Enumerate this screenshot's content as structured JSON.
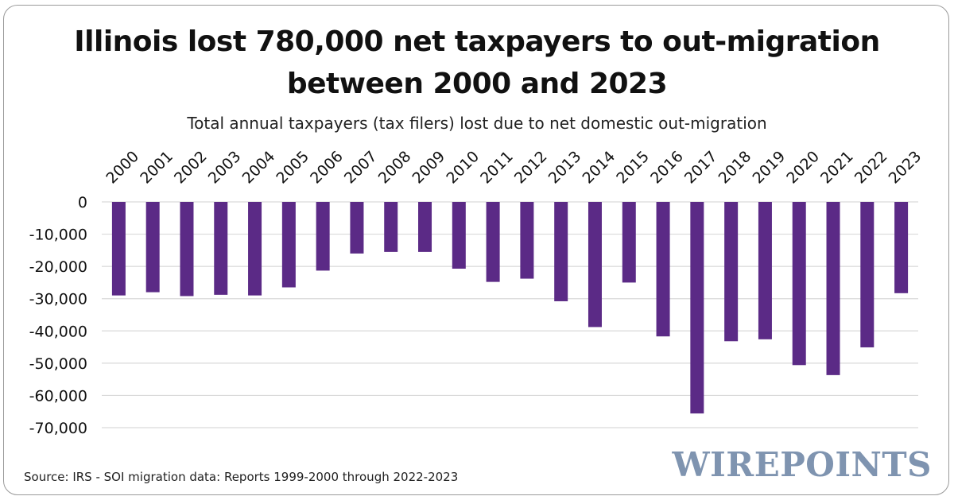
{
  "title_line1": "Illinois lost 780,000 net taxpayers to out-migration",
  "title_line2": "between 2000 and 2023",
  "subtitle": "Total annual taxpayers (tax filers) lost due to net domestic out-migration",
  "source": "Source: IRS - SOI migration data: Reports 1999-2000 through 2022-2023",
  "logo_text": "WIREPOINTS",
  "colors": {
    "bar": "#5b2a86",
    "grid": "#d9d9d9",
    "logo": "#7f94b0"
  },
  "chart_data": {
    "type": "bar",
    "title": "Illinois lost 780,000 net taxpayers to out-migration between 2000 and 2023",
    "subtitle": "Total annual taxpayers (tax filers) lost due to net domestic out-migration",
    "xlabel": "",
    "ylabel": "",
    "categories": [
      "2000",
      "2001",
      "2002",
      "2003",
      "2004",
      "2005",
      "2006",
      "2007",
      "2008",
      "2009",
      "2010",
      "2011",
      "2012",
      "2013",
      "2014",
      "2015",
      "2016",
      "2017",
      "2018",
      "2019",
      "2020",
      "2021",
      "2022",
      "2023"
    ],
    "values": [
      -29000,
      -28000,
      -29200,
      -28800,
      -29000,
      -26500,
      -21300,
      -16000,
      -15500,
      -15500,
      -20700,
      -24800,
      -23800,
      -30800,
      -38800,
      -25000,
      -41700,
      -65600,
      -43200,
      -42600,
      -50600,
      -53700,
      -45100,
      -28300
    ],
    "ylim": [
      -70000,
      0
    ],
    "yticks": [
      0,
      -10000,
      -20000,
      -30000,
      -40000,
      -50000,
      -60000,
      -70000
    ],
    "ytick_labels": [
      "0",
      "-10,000",
      "-20,000",
      "-30,000",
      "-40,000",
      "-50,000",
      "-60,000",
      "-70,000"
    ],
    "grid": true,
    "xaxis_position": "top"
  }
}
